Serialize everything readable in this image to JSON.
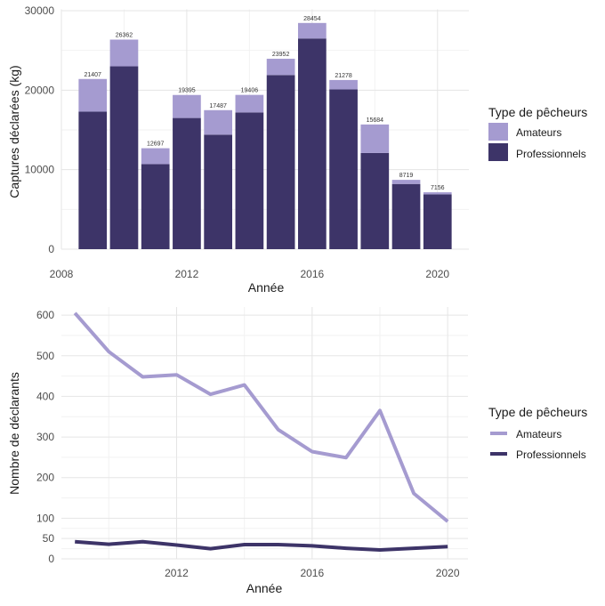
{
  "colors": {
    "amateurs": "#a59bd0",
    "professionnels": "#3d3468",
    "grid_major": "#e5e5e5",
    "grid_minor": "#f2f2f2",
    "tick_text": "#4d4d4d",
    "axis_title": "#1a1a1a",
    "label_text": "#333333"
  },
  "legend": {
    "title": "Type de pêcheurs",
    "items": [
      "Amateurs",
      "Professionnels"
    ]
  },
  "chart_data": [
    {
      "type": "bar",
      "stacked": true,
      "xlabel": "Année",
      "ylabel": "Captures déclarées (kg)",
      "x_ticks": [
        "2008",
        "2012",
        "2016",
        "2020"
      ],
      "y_ticks": [
        "0",
        "10000",
        "20000",
        "30000"
      ],
      "xlim": [
        2008,
        2021
      ],
      "ylim": [
        0,
        30000
      ],
      "grid": true,
      "legend_position": "right",
      "categories": [
        2009,
        2010,
        2011,
        2012,
        2013,
        2014,
        2015,
        2016,
        2017,
        2018,
        2019,
        2020
      ],
      "series": [
        {
          "name": "Professionnels",
          "values": [
            17300,
            23000,
            10700,
            16500,
            14400,
            17200,
            21900,
            26500,
            20100,
            12100,
            8200,
            6900
          ]
        },
        {
          "name": "Amateurs",
          "values": [
            4107,
            3362,
            1997,
            2895,
            3087,
            2206,
            2052,
            1954,
            1178,
            3584,
            519,
            256
          ]
        }
      ],
      "totals": [
        21407,
        26362,
        12697,
        19395,
        17487,
        19406,
        23952,
        28454,
        21278,
        15684,
        8719,
        7156
      ],
      "total_labels": [
        "21407",
        "26362",
        "12697",
        "19395",
        "17487",
        "19406",
        "23952",
        "28454",
        "21278",
        "15684",
        "8719",
        "7156"
      ]
    },
    {
      "type": "line",
      "xlabel": "Année",
      "ylabel": "Nombre de déclarants",
      "x_ticks": [
        "2012",
        "2016",
        "2020"
      ],
      "y_ticks": [
        "0",
        "50",
        "100",
        "200",
        "300",
        "400",
        "500",
        "600"
      ],
      "xlim": [
        2008.6,
        2020.6
      ],
      "ylim": [
        0,
        620
      ],
      "grid": true,
      "legend_position": "right",
      "x": [
        2009,
        2010,
        2011,
        2012,
        2013,
        2014,
        2015,
        2016,
        2017,
        2018,
        2019,
        2020
      ],
      "series": [
        {
          "name": "Amateurs",
          "values": [
            605,
            510,
            448,
            453,
            405,
            428,
            318,
            264,
            249,
            365,
            161,
            92
          ]
        },
        {
          "name": "Professionnels",
          "values": [
            42,
            36,
            42,
            34,
            25,
            35,
            35,
            32,
            26,
            22,
            26,
            30
          ]
        }
      ]
    }
  ]
}
